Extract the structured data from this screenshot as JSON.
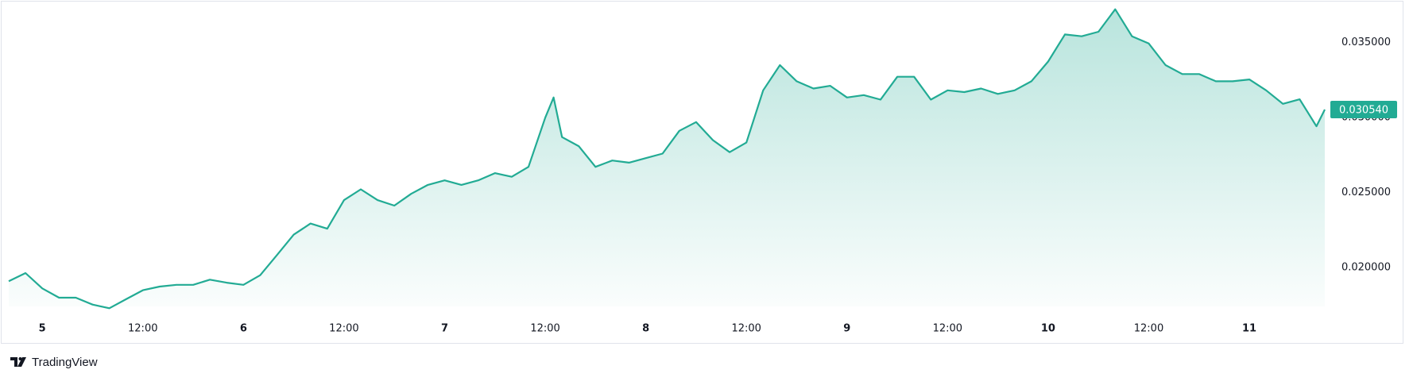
{
  "chart_data": {
    "type": "area",
    "color": "#22ab94",
    "branding": "TradingView",
    "x": [
      -4,
      -2,
      0,
      2,
      4,
      6,
      8,
      10,
      12,
      14,
      16,
      18,
      20,
      22,
      24,
      26,
      28,
      30,
      32,
      34,
      36,
      38,
      40,
      42,
      44,
      46,
      48,
      50,
      52,
      54,
      56,
      58,
      60,
      61,
      62,
      64,
      66,
      68,
      70,
      72,
      74,
      76,
      78,
      80,
      82,
      84,
      86,
      88,
      90,
      92,
      94,
      96,
      98,
      100,
      102,
      104,
      106,
      108,
      110,
      112,
      114,
      116,
      118,
      120,
      122,
      124,
      126,
      128,
      130,
      132,
      134,
      136,
      138,
      140,
      142,
      144,
      146,
      148,
      150,
      152,
      153
    ],
    "values": [
      0.0191,
      0.01964,
      0.01862,
      0.018,
      0.018,
      0.01754,
      0.0173,
      0.0179,
      0.0185,
      0.01874,
      0.01886,
      0.01886,
      0.0192,
      0.019,
      0.01886,
      0.0195,
      0.02084,
      0.0222,
      0.02294,
      0.0226,
      0.0245,
      0.02522,
      0.0245,
      0.02414,
      0.02492,
      0.02552,
      0.02582,
      0.02552,
      0.02582,
      0.0263,
      0.02606,
      0.02672,
      0.03,
      0.03134,
      0.0287,
      0.0281,
      0.02672,
      0.02714,
      0.027,
      0.0273,
      0.0276,
      0.02912,
      0.0297,
      0.0285,
      0.0277,
      0.02834,
      0.03182,
      0.0335,
      0.03242,
      0.03194,
      0.03212,
      0.03134,
      0.0315,
      0.0312,
      0.03272,
      0.03272,
      0.0312,
      0.03182,
      0.0317,
      0.03194,
      0.03158,
      0.03182,
      0.03242,
      0.03374,
      0.03554,
      0.03542,
      0.03572,
      0.03722,
      0.03542,
      0.03494,
      0.0335,
      0.0329,
      0.0329,
      0.03242,
      0.03242,
      0.03254,
      0.03182,
      0.03092,
      0.03122,
      0.02942,
      0.03054
    ],
    "last_price": {
      "value": 0.03054,
      "label": "0.030540"
    },
    "xlim": [
      -4,
      153
    ],
    "xticks": [
      {
        "value": 0,
        "label": "5"
      },
      {
        "value": 12,
        "label": "12:00"
      },
      {
        "value": 24,
        "label": "6"
      },
      {
        "value": 36,
        "label": "12:00"
      },
      {
        "value": 48,
        "label": "7"
      },
      {
        "value": 60,
        "label": "12:00"
      },
      {
        "value": 72,
        "label": "8"
      },
      {
        "value": 84,
        "label": "12:00"
      },
      {
        "value": 96,
        "label": "9"
      },
      {
        "value": 108,
        "label": "12:00"
      },
      {
        "value": 120,
        "label": "10"
      },
      {
        "value": 132,
        "label": "12:00"
      },
      {
        "value": 144,
        "label": "11"
      }
    ],
    "ylim": [
      0.01742,
      0.03752
    ],
    "yticks": [
      {
        "value": 0.02,
        "label": "0.020000"
      },
      {
        "value": 0.025,
        "label": "0.025000"
      },
      {
        "value": 0.03,
        "label": "0.030000"
      },
      {
        "value": 0.035,
        "label": "0.035000"
      }
    ]
  }
}
